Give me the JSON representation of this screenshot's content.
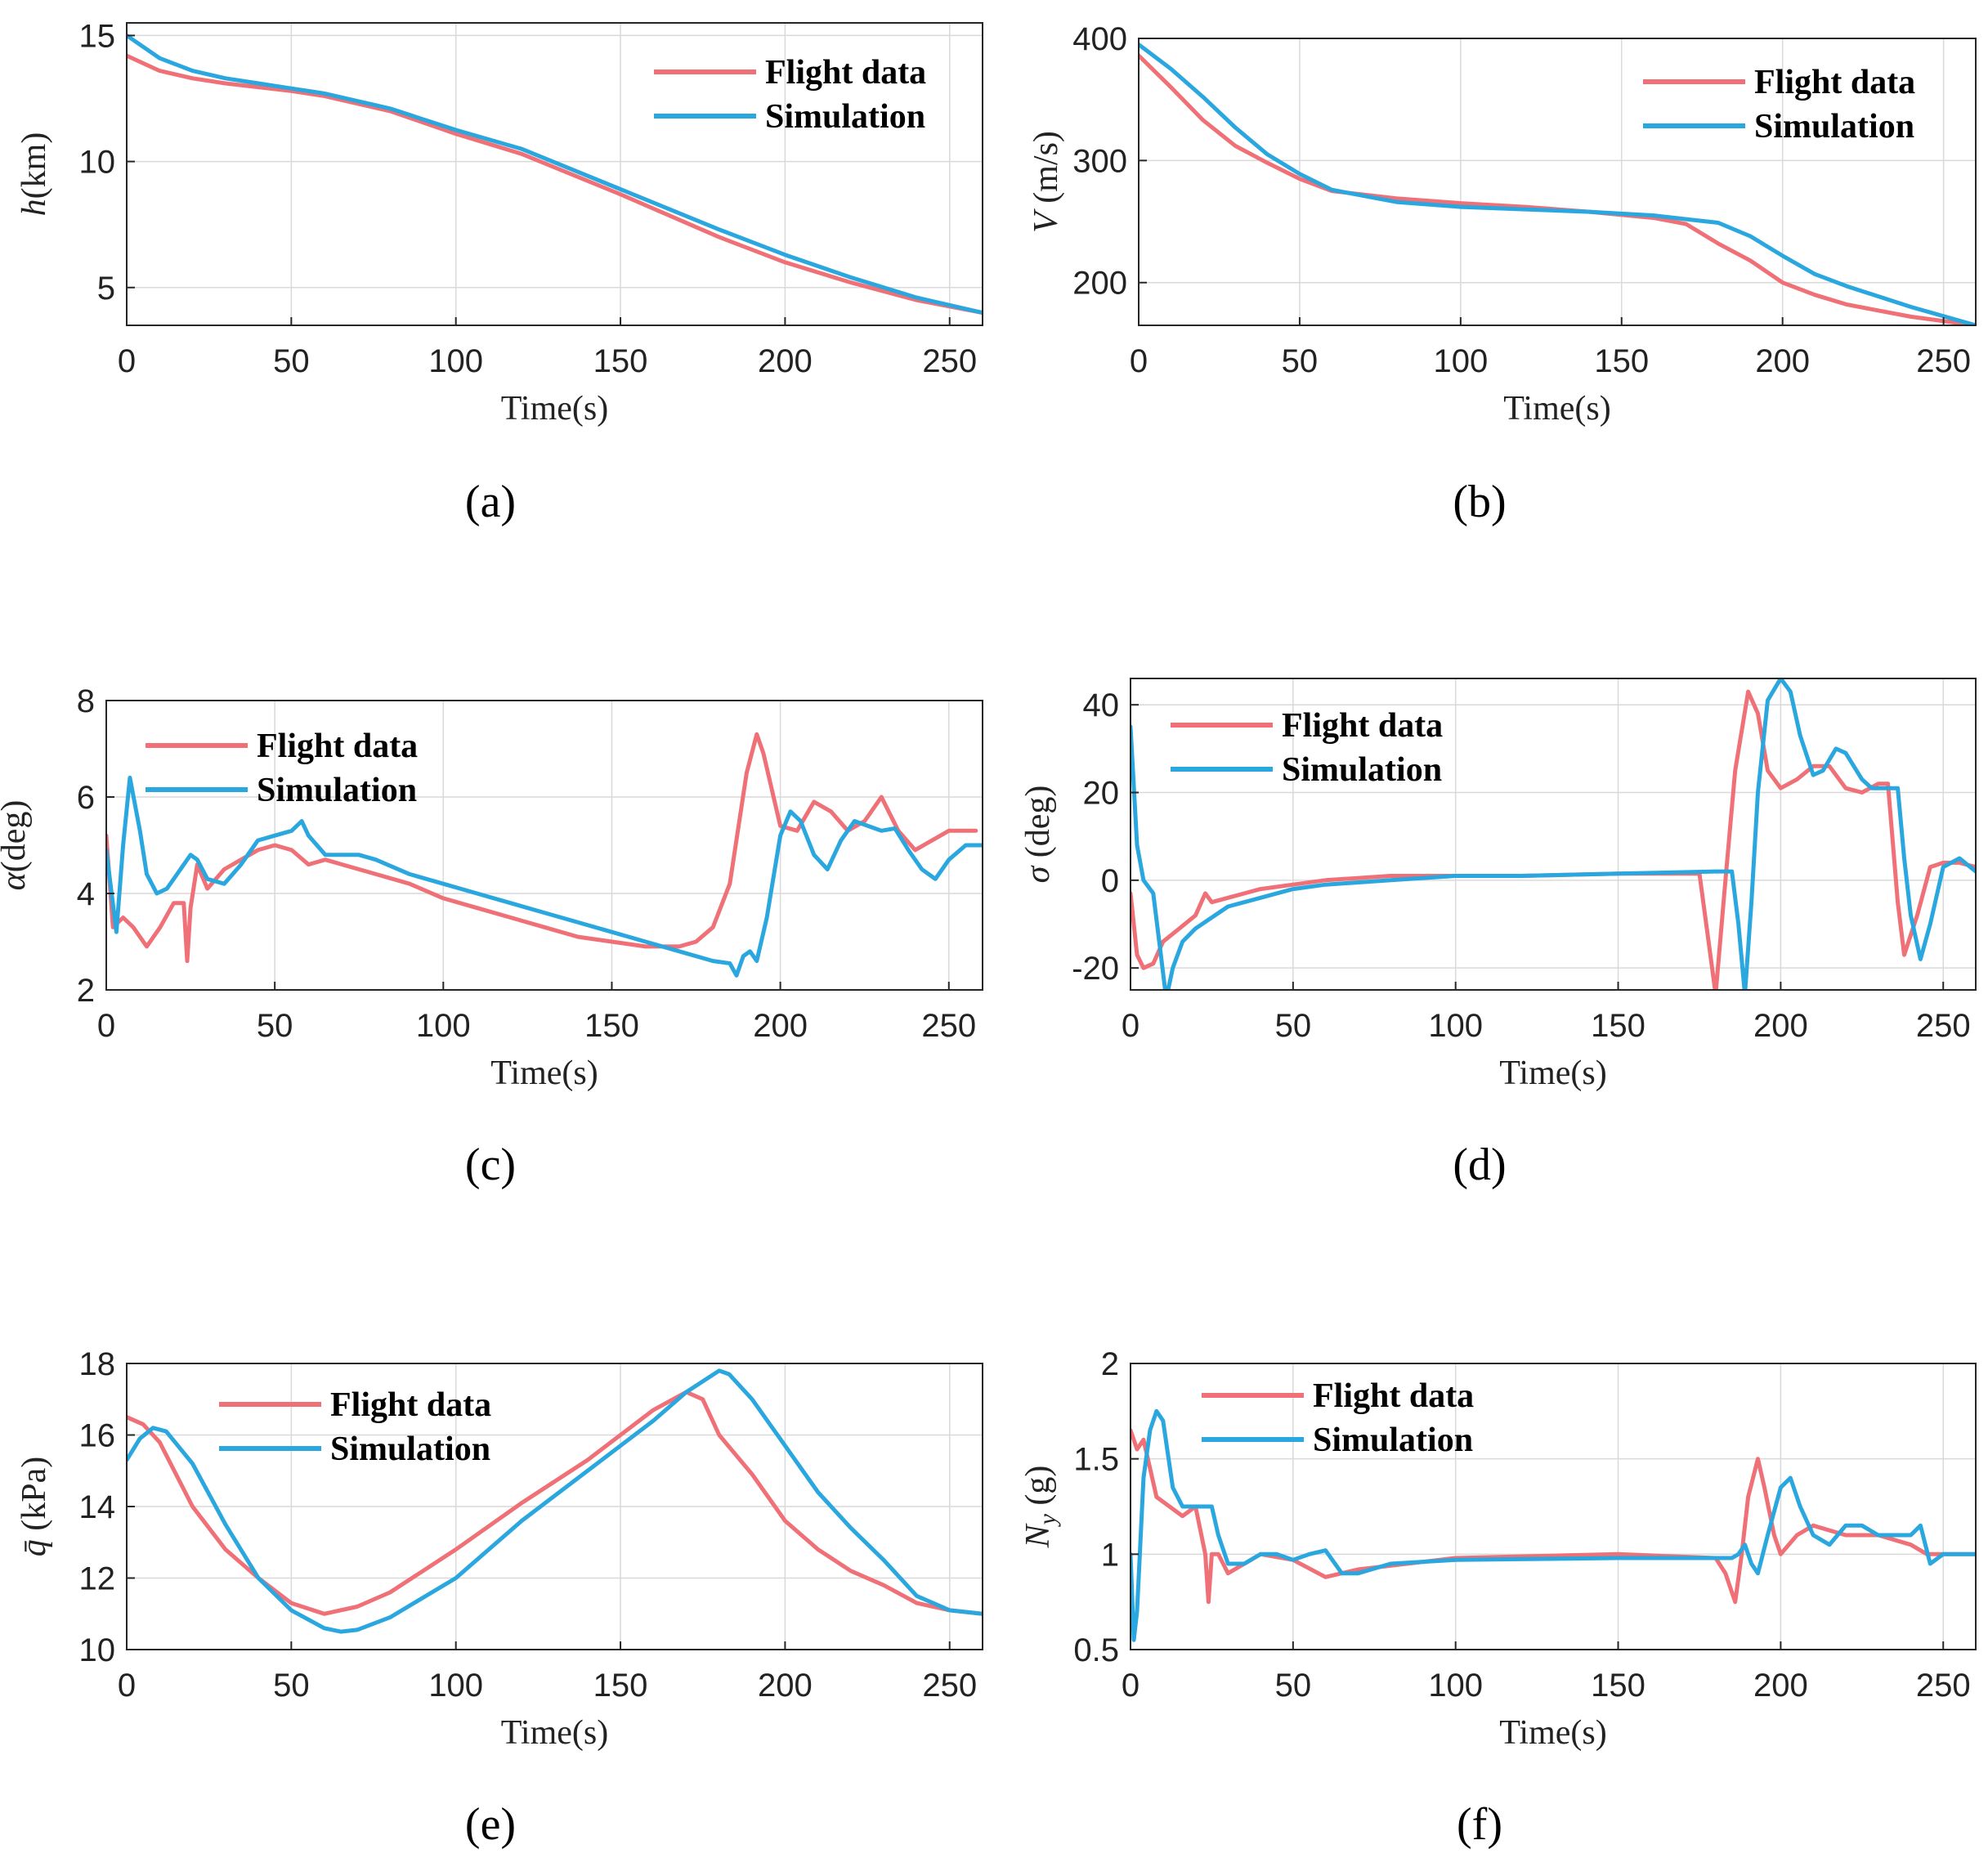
{
  "figure": {
    "colors": {
      "flight": "#ef7077",
      "sim": "#2aa7de"
    },
    "legend": {
      "flight": "Flight data",
      "sim": "Simulation"
    }
  },
  "chart_data": [
    {
      "id": "a",
      "type": "line",
      "panel_label": "(a)",
      "ylabel": "h(km)",
      "ylabel_var": "h",
      "ylabel_unit": "(km)",
      "xlabel": "Time(s)",
      "xlim": [
        0,
        260
      ],
      "ylim": [
        3.5,
        15.5
      ],
      "xticks": [
        0,
        50,
        100,
        150,
        200,
        250
      ],
      "yticks": [
        5,
        10,
        15
      ],
      "legend_position": "top-right",
      "series": [
        {
          "name": "Flight data",
          "x": [
            0,
            10,
            20,
            30,
            40,
            50,
            60,
            70,
            80,
            100,
            120,
            150,
            180,
            200,
            220,
            240,
            260
          ],
          "y": [
            14.2,
            13.6,
            13.3,
            13.1,
            12.95,
            12.8,
            12.6,
            12.3,
            12.0,
            11.1,
            10.3,
            8.7,
            7.0,
            6.0,
            5.2,
            4.5,
            4.0
          ]
        },
        {
          "name": "Simulation",
          "x": [
            0,
            10,
            20,
            30,
            40,
            50,
            60,
            70,
            80,
            100,
            120,
            150,
            180,
            200,
            220,
            240,
            260
          ],
          "y": [
            15.0,
            14.1,
            13.6,
            13.3,
            13.1,
            12.9,
            12.7,
            12.4,
            12.1,
            11.25,
            10.5,
            8.9,
            7.3,
            6.3,
            5.4,
            4.6,
            4.0
          ]
        }
      ]
    },
    {
      "id": "b",
      "type": "line",
      "panel_label": "(b)",
      "ylabel": "V (m/s)",
      "ylabel_var": "V",
      "ylabel_unit": " (m/s)",
      "xlabel": "Time(s)",
      "xlim": [
        0,
        260
      ],
      "ylim": [
        165,
        400
      ],
      "xticks": [
        0,
        50,
        100,
        150,
        200,
        250
      ],
      "yticks": [
        200,
        300,
        400
      ],
      "legend_position": "top-right",
      "series": [
        {
          "name": "Flight data",
          "x": [
            0,
            10,
            20,
            30,
            40,
            50,
            60,
            80,
            100,
            120,
            140,
            160,
            170,
            180,
            190,
            200,
            210,
            220,
            240,
            260
          ],
          "y": [
            386,
            360,
            333,
            312,
            298,
            285,
            275,
            269,
            265,
            262,
            258,
            253,
            248,
            232,
            218,
            200,
            190,
            182,
            172,
            165
          ]
        },
        {
          "name": "Simulation",
          "x": [
            0,
            10,
            20,
            30,
            40,
            50,
            60,
            80,
            100,
            120,
            140,
            160,
            170,
            180,
            190,
            200,
            210,
            220,
            240,
            260
          ],
          "y": [
            395,
            375,
            352,
            327,
            305,
            289,
            276,
            266,
            262,
            260,
            258,
            255,
            252,
            249,
            238,
            222,
            207,
            197,
            180,
            165
          ]
        }
      ]
    },
    {
      "id": "c",
      "type": "line",
      "panel_label": "(c)",
      "ylabel": "α(deg)",
      "ylabel_var": "α",
      "ylabel_unit": "(deg)",
      "xlabel": "Time(s)",
      "xlim": [
        0,
        260
      ],
      "ylim": [
        2,
        8
      ],
      "xticks": [
        0,
        50,
        100,
        150,
        200,
        250
      ],
      "yticks": [
        2,
        4,
        6,
        8
      ],
      "legend_position": "top-left",
      "series": [
        {
          "name": "Flight data",
          "x": [
            0,
            2,
            5,
            8,
            12,
            16,
            20,
            23,
            24,
            25,
            27,
            30,
            35,
            40,
            45,
            50,
            55,
            60,
            65,
            70,
            80,
            90,
            100,
            110,
            120,
            130,
            140,
            150,
            160,
            170,
            175,
            180,
            185,
            190,
            193,
            195,
            200,
            205,
            210,
            215,
            220,
            225,
            230,
            235,
            240,
            245,
            250,
            255,
            258
          ],
          "y": [
            5.2,
            3.3,
            3.5,
            3.3,
            2.9,
            3.3,
            3.8,
            3.8,
            2.6,
            3.7,
            4.6,
            4.1,
            4.5,
            4.7,
            4.9,
            5.0,
            4.9,
            4.6,
            4.7,
            4.6,
            4.4,
            4.2,
            3.9,
            3.7,
            3.5,
            3.3,
            3.1,
            3.0,
            2.9,
            2.9,
            3.0,
            3.3,
            4.2,
            6.5,
            7.3,
            6.9,
            5.4,
            5.3,
            5.9,
            5.7,
            5.3,
            5.5,
            6.0,
            5.3,
            4.9,
            5.1,
            5.3,
            5.3,
            5.3
          ]
        },
        {
          "name": "Simulation",
          "x": [
            0,
            3,
            5,
            7,
            10,
            12,
            15,
            18,
            20,
            25,
            27,
            30,
            35,
            40,
            45,
            50,
            55,
            58,
            60,
            65,
            70,
            75,
            80,
            90,
            100,
            110,
            120,
            130,
            140,
            150,
            160,
            170,
            180,
            185,
            187,
            189,
            191,
            193,
            196,
            200,
            203,
            206,
            210,
            214,
            218,
            222,
            226,
            230,
            234,
            238,
            242,
            246,
            250,
            255,
            260
          ],
          "y": [
            4.9,
            3.2,
            5.0,
            6.4,
            5.3,
            4.4,
            4.0,
            4.1,
            4.3,
            4.8,
            4.7,
            4.3,
            4.2,
            4.6,
            5.1,
            5.2,
            5.3,
            5.5,
            5.2,
            4.8,
            4.8,
            4.8,
            4.7,
            4.4,
            4.2,
            4.0,
            3.8,
            3.6,
            3.4,
            3.2,
            3.0,
            2.8,
            2.6,
            2.55,
            2.3,
            2.7,
            2.8,
            2.6,
            3.5,
            5.2,
            5.7,
            5.5,
            4.8,
            4.5,
            5.1,
            5.5,
            5.4,
            5.3,
            5.35,
            4.9,
            4.5,
            4.3,
            4.7,
            5.0,
            5.0
          ]
        }
      ]
    },
    {
      "id": "d",
      "type": "line",
      "panel_label": "(d)",
      "ylabel": "σ (deg)",
      "ylabel_var": "σ",
      "ylabel_unit": " (deg)",
      "xlabel": "Time(s)",
      "xlim": [
        0,
        260
      ],
      "ylim": [
        -25,
        46
      ],
      "xticks": [
        0,
        50,
        100,
        150,
        200,
        250
      ],
      "yticks": [
        -20,
        0,
        20,
        40
      ],
      "legend_position": "top-left",
      "series": [
        {
          "name": "Flight data",
          "x": [
            0,
            2,
            4,
            7,
            10,
            15,
            20,
            23,
            25,
            30,
            40,
            50,
            60,
            80,
            100,
            120,
            150,
            175,
            178,
            180,
            183,
            186,
            190,
            193,
            196,
            200,
            205,
            210,
            215,
            220,
            225,
            230,
            233,
            236,
            238,
            242,
            246,
            250,
            255,
            260
          ],
          "y": [
            -3,
            -17,
            -20,
            -19,
            -14,
            -11,
            -8,
            -3,
            -5,
            -4,
            -2,
            -1,
            0,
            1,
            1,
            1,
            1.5,
            1.5,
            -15,
            -26,
            0,
            25,
            43,
            38,
            25,
            21,
            23,
            26,
            26,
            21,
            20,
            22,
            22,
            -5,
            -17,
            -8,
            3,
            4,
            4,
            3
          ]
        },
        {
          "name": "Simulation",
          "x": [
            0,
            2,
            4,
            7,
            9,
            11,
            13,
            16,
            20,
            30,
            40,
            50,
            60,
            80,
            100,
            120,
            150,
            180,
            185,
            187,
            189,
            191,
            193,
            196,
            200,
            203,
            206,
            210,
            213,
            217,
            220,
            225,
            228,
            232,
            236,
            238,
            240,
            243,
            246,
            250,
            255,
            260
          ],
          "y": [
            35,
            8,
            0,
            -3,
            -15,
            -27,
            -20,
            -14,
            -11,
            -6,
            -4,
            -2,
            -1,
            0,
            1,
            1,
            1.5,
            2,
            2,
            -10,
            -26,
            -5,
            20,
            41,
            46,
            43,
            33,
            24,
            25,
            30,
            29,
            23,
            21,
            21,
            21,
            5,
            -8,
            -18,
            -10,
            3,
            5,
            2
          ]
        }
      ]
    },
    {
      "id": "e",
      "type": "line",
      "panel_label": "(e)",
      "ylabel": "q̄ (kPa)",
      "ylabel_var": "q̄",
      "ylabel_unit": " (kPa)",
      "xlabel": "Time(s)",
      "xlim": [
        0,
        260
      ],
      "ylim": [
        10,
        18
      ],
      "xticks": [
        0,
        50,
        100,
        150,
        200,
        250
      ],
      "yticks": [
        10,
        12,
        14,
        16,
        18
      ],
      "legend_position": "top-center",
      "series": [
        {
          "name": "Flight data",
          "x": [
            0,
            5,
            10,
            20,
            30,
            40,
            50,
            60,
            70,
            80,
            90,
            100,
            120,
            140,
            150,
            160,
            170,
            175,
            180,
            190,
            200,
            210,
            220,
            230,
            240,
            250,
            260
          ],
          "y": [
            16.5,
            16.3,
            15.8,
            14.0,
            12.8,
            12.0,
            11.3,
            11.0,
            11.2,
            11.6,
            12.2,
            12.8,
            14.1,
            15.3,
            16.0,
            16.7,
            17.2,
            17.0,
            16.0,
            14.9,
            13.6,
            12.8,
            12.2,
            11.8,
            11.3,
            11.1,
            11.0
          ]
        },
        {
          "name": "Simulation",
          "x": [
            0,
            4,
            8,
            12,
            20,
            30,
            40,
            50,
            60,
            65,
            70,
            80,
            100,
            120,
            140,
            160,
            170,
            180,
            183,
            190,
            200,
            210,
            220,
            230,
            240,
            250,
            260
          ],
          "y": [
            15.3,
            15.9,
            16.2,
            16.1,
            15.2,
            13.5,
            12.0,
            11.1,
            10.6,
            10.5,
            10.55,
            10.9,
            12.0,
            13.6,
            15.0,
            16.4,
            17.2,
            17.8,
            17.7,
            17.0,
            15.7,
            14.4,
            13.4,
            12.5,
            11.5,
            11.1,
            11.0
          ]
        }
      ]
    },
    {
      "id": "f",
      "type": "line",
      "panel_label": "(f)",
      "ylabel": "Ny (g)",
      "ylabel_var": "N",
      "ylabel_sub": "y",
      "ylabel_unit": " (g)",
      "xlabel": "Time(s)",
      "xlim": [
        0,
        260
      ],
      "ylim": [
        0.5,
        2
      ],
      "xticks": [
        0,
        50,
        100,
        150,
        200,
        250
      ],
      "yticks": [
        0.5,
        1,
        1.5,
        2
      ],
      "legend_position": "top-center",
      "series": [
        {
          "name": "Flight data",
          "x": [
            0,
            2,
            4,
            6,
            8,
            12,
            16,
            20,
            23,
            24,
            25,
            27,
            30,
            40,
            50,
            60,
            70,
            100,
            150,
            180,
            183,
            186,
            188,
            190,
            193,
            195,
            198,
            200,
            205,
            210,
            220,
            230,
            240,
            245,
            250,
            255,
            260
          ],
          "y": [
            1.65,
            1.55,
            1.6,
            1.45,
            1.3,
            1.25,
            1.2,
            1.25,
            1.0,
            0.75,
            1.0,
            1.0,
            0.9,
            1.0,
            0.97,
            0.88,
            0.92,
            0.98,
            1.0,
            0.98,
            0.9,
            0.75,
            1.0,
            1.3,
            1.5,
            1.35,
            1.1,
            1.0,
            1.1,
            1.15,
            1.1,
            1.1,
            1.05,
            1.0,
            1.0,
            1.0,
            1.0
          ]
        },
        {
          "name": "Simulation",
          "x": [
            0,
            1,
            2,
            4,
            6,
            8,
            10,
            13,
            16,
            20,
            25,
            27,
            30,
            35,
            40,
            45,
            50,
            55,
            60,
            65,
            70,
            80,
            100,
            150,
            180,
            185,
            187,
            189,
            191,
            193,
            196,
            200,
            203,
            206,
            210,
            215,
            220,
            225,
            230,
            235,
            240,
            243,
            246,
            250,
            255,
            260
          ],
          "y": [
            1.0,
            0.55,
            0.7,
            1.4,
            1.65,
            1.75,
            1.7,
            1.35,
            1.25,
            1.25,
            1.25,
            1.1,
            0.95,
            0.95,
            1.0,
            1.0,
            0.97,
            1.0,
            1.02,
            0.9,
            0.9,
            0.95,
            0.97,
            0.98,
            0.98,
            0.98,
            1.0,
            1.05,
            0.95,
            0.9,
            1.1,
            1.35,
            1.4,
            1.25,
            1.1,
            1.05,
            1.15,
            1.15,
            1.1,
            1.1,
            1.1,
            1.15,
            0.95,
            1.0,
            1.0,
            1.0
          ]
        }
      ]
    }
  ]
}
